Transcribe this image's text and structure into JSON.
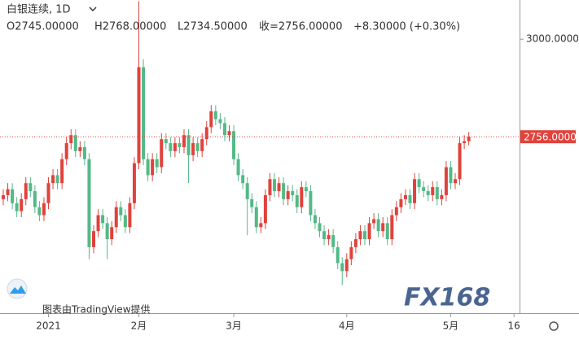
{
  "chart_data": {
    "type": "candlestick",
    "title": "白银连续, 1D",
    "ohlc_labels": [
      "O2745.00000",
      "H2768.00000",
      "L2734.50000",
      "收=2756.00000",
      "+8.30000 (+0.30%)"
    ],
    "last_price": {
      "value": 2756,
      "label": "2756.00000"
    },
    "watermark": "图表由TradingView提供",
    "logo": "FX168",
    "up_color": "#e0423c",
    "down_color": "#53b987",
    "ylim": [
      2315,
      3098
    ],
    "yticks": [
      {
        "value": 3000,
        "label": "3000.00000"
      }
    ],
    "categories": [
      null,
      null,
      null,
      null,
      null,
      null,
      null,
      null,
      null,
      null,
      "2021",
      null,
      null,
      null,
      null,
      null,
      null,
      null,
      null,
      null,
      null,
      null,
      null,
      null,
      null,
      null,
      null,
      null,
      null,
      null,
      "2月",
      null,
      null,
      null,
      null,
      null,
      null,
      null,
      null,
      null,
      null,
      null,
      null,
      null,
      null,
      null,
      null,
      null,
      null,
      null,
      null,
      "3月",
      null,
      null,
      null,
      null,
      null,
      null,
      null,
      null,
      null,
      null,
      null,
      null,
      null,
      null,
      null,
      null,
      null,
      null,
      null,
      null,
      null,
      null,
      null,
      null,
      "4月",
      null,
      null,
      null,
      null,
      null,
      null,
      null,
      null,
      null,
      null,
      null,
      null,
      null,
      null,
      null,
      null,
      null,
      null,
      null,
      null,
      null,
      null,
      "5月",
      null,
      null,
      null,
      null,
      null,
      null,
      null,
      null,
      null,
      null,
      null,
      null,
      null,
      "16",
      null
    ],
    "open": [
      2600,
      2610,
      2625,
      2590,
      2570,
      2600,
      2640,
      2620,
      2580,
      2560,
      2590,
      2640,
      2660,
      2640,
      2700,
      2740,
      2760,
      2720,
      2730,
      2700,
      2480,
      2520,
      2560,
      2540,
      2500,
      2530,
      2580,
      2560,
      2530,
      2590,
      2690,
      2930,
      2700,
      2660,
      2700,
      2680,
      2750,
      2740,
      2720,
      2740,
      2730,
      2760,
      2710,
      2740,
      2720,
      2750,
      2780,
      2820,
      2800,
      2790,
      2760,
      2770,
      2700,
      2660,
      2640,
      2600,
      2580,
      2530,
      2540,
      2610,
      2650,
      2620,
      2640,
      2600,
      2620,
      2610,
      2580,
      2630,
      2620,
      2560,
      2540,
      2520,
      2500,
      2510,
      2480,
      2440,
      2420,
      2450,
      2480,
      2500,
      2520,
      2500,
      2540,
      2550,
      2520,
      2540,
      2500,
      2560,
      2580,
      2600,
      2610,
      2590,
      2650,
      2630,
      2620,
      2610,
      2630,
      2600,
      2610,
      2680,
      2640,
      2650,
      2740,
      2745,
      null,
      null,
      null,
      null,
      null,
      null,
      null,
      null,
      null,
      null,
      null
    ],
    "high": [
      2625,
      2640,
      2640,
      2605,
      2615,
      2655,
      2655,
      2635,
      2595,
      2605,
      2655,
      2675,
      2675,
      2715,
      2755,
      2775,
      2775,
      2745,
      2745,
      2715,
      2535,
      2575,
      2575,
      2555,
      2545,
      2595,
      2595,
      2575,
      2605,
      2705,
      3095,
      2950,
      2715,
      2715,
      2715,
      2765,
      2765,
      2755,
      2755,
      2755,
      2775,
      2775,
      2755,
      2755,
      2765,
      2795,
      2835,
      2835,
      2815,
      2805,
      2785,
      2785,
      2715,
      2675,
      2655,
      2615,
      2595,
      2555,
      2625,
      2665,
      2665,
      2655,
      2655,
      2635,
      2635,
      2625,
      2645,
      2645,
      2635,
      2575,
      2555,
      2535,
      2525,
      2525,
      2495,
      2455,
      2465,
      2495,
      2515,
      2535,
      2535,
      2555,
      2565,
      2565,
      2555,
      2555,
      2575,
      2595,
      2615,
      2625,
      2625,
      2665,
      2665,
      2645,
      2635,
      2645,
      2645,
      2625,
      2695,
      2695,
      2665,
      2755,
      2760,
      2768,
      null,
      null,
      null,
      null,
      null,
      null,
      null,
      null,
      null,
      null,
      null
    ],
    "low": [
      2585,
      2595,
      2575,
      2555,
      2555,
      2585,
      2605,
      2565,
      2545,
      2545,
      2575,
      2625,
      2625,
      2625,
      2685,
      2725,
      2705,
      2705,
      2685,
      2450,
      2465,
      2505,
      2525,
      2450,
      2485,
      2515,
      2545,
      2515,
      2515,
      2575,
      2675,
      2685,
      2645,
      2645,
      2665,
      2665,
      2725,
      2705,
      2705,
      2715,
      2715,
      2640,
      2695,
      2705,
      2705,
      2735,
      2765,
      2785,
      2775,
      2745,
      2745,
      2685,
      2645,
      2625,
      2510,
      2565,
      2515,
      2515,
      2525,
      2595,
      2605,
      2605,
      2585,
      2585,
      2595,
      2565,
      2565,
      2605,
      2545,
      2525,
      2505,
      2485,
      2485,
      2465,
      2425,
      2385,
      2405,
      2435,
      2465,
      2485,
      2485,
      2485,
      2525,
      2505,
      2505,
      2485,
      2485,
      2545,
      2565,
      2585,
      2575,
      2575,
      2615,
      2605,
      2595,
      2595,
      2585,
      2585,
      2595,
      2625,
      2625,
      2635,
      2725,
      2734.5,
      null,
      null,
      null,
      null,
      null,
      null,
      null,
      null,
      null,
      null,
      null
    ],
    "close": [
      2610,
      2625,
      2590,
      2570,
      2600,
      2640,
      2620,
      2580,
      2560,
      2590,
      2640,
      2660,
      2640,
      2700,
      2740,
      2760,
      2720,
      2730,
      2700,
      2480,
      2520,
      2560,
      2540,
      2500,
      2530,
      2580,
      2560,
      2530,
      2590,
      2690,
      2930,
      2700,
      2660,
      2700,
      2680,
      2750,
      2740,
      2720,
      2740,
      2730,
      2760,
      2710,
      2740,
      2720,
      2750,
      2780,
      2820,
      2800,
      2790,
      2760,
      2770,
      2700,
      2660,
      2640,
      2600,
      2580,
      2530,
      2540,
      2610,
      2650,
      2620,
      2640,
      2600,
      2620,
      2610,
      2580,
      2630,
      2620,
      2560,
      2540,
      2520,
      2500,
      2510,
      2480,
      2440,
      2420,
      2450,
      2480,
      2500,
      2520,
      2500,
      2540,
      2550,
      2520,
      2540,
      2500,
      2560,
      2580,
      2600,
      2610,
      2590,
      2650,
      2630,
      2620,
      2610,
      2630,
      2600,
      2610,
      2680,
      2640,
      2650,
      2740,
      2745,
      2756,
      null,
      null,
      null,
      null,
      null,
      null,
      null,
      null,
      null,
      null,
      null
    ]
  }
}
